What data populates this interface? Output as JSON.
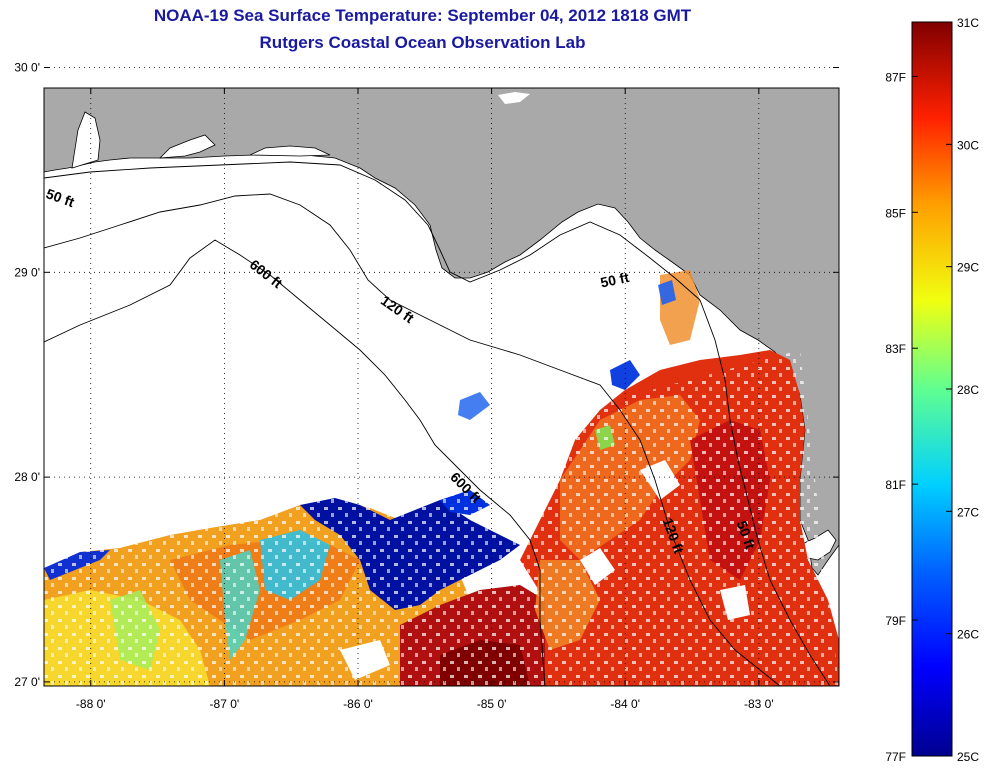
{
  "title": {
    "line1": "NOAA-19 Sea Surface Temperature:  September 04, 2012 1818 GMT",
    "line2": "Rutgers Coastal Ocean Observation Lab"
  },
  "map": {
    "lon_range": [
      -88.35,
      -82.4
    ],
    "lat_range": [
      26.98,
      29.9
    ],
    "lon_ticks": [
      {
        "value": -88,
        "label": "-88 0'"
      },
      {
        "value": -87,
        "label": "-87 0'"
      },
      {
        "value": -86,
        "label": "-86 0'"
      },
      {
        "value": -85,
        "label": "-85 0'"
      },
      {
        "value": -84,
        "label": "-84 0'"
      },
      {
        "value": -83,
        "label": "-83 0'"
      }
    ],
    "lat_ticks": [
      {
        "value": 27,
        "label": "27 0'"
      },
      {
        "value": 28,
        "label": "28 0'"
      },
      {
        "value": 29,
        "label": "29 0'"
      },
      {
        "value": 30,
        "label": "30 0'"
      }
    ],
    "contours": [
      {
        "label": "50 ft"
      },
      {
        "label": "50 ft"
      },
      {
        "label": "50 ft"
      },
      {
        "label": "120 ft"
      },
      {
        "label": "120 ft"
      },
      {
        "label": "600 ft"
      },
      {
        "label": "600 ft"
      }
    ],
    "colors": {
      "land": "#a9a9a9",
      "background": "#ffffff",
      "contour": "#000000"
    }
  },
  "colorbar": {
    "celsius": [
      "31C",
      "30C",
      "29C",
      "28C",
      "27C",
      "26C",
      "25C"
    ],
    "fahrenheit": [
      "87F",
      "85F",
      "83F",
      "81F",
      "79F",
      "77F"
    ],
    "gradient": [
      "#800000",
      "#ff0000",
      "#ff8000",
      "#ffff00",
      "#80ff80",
      "#00ffff",
      "#0080ff",
      "#0000ff",
      "#00008f"
    ]
  }
}
